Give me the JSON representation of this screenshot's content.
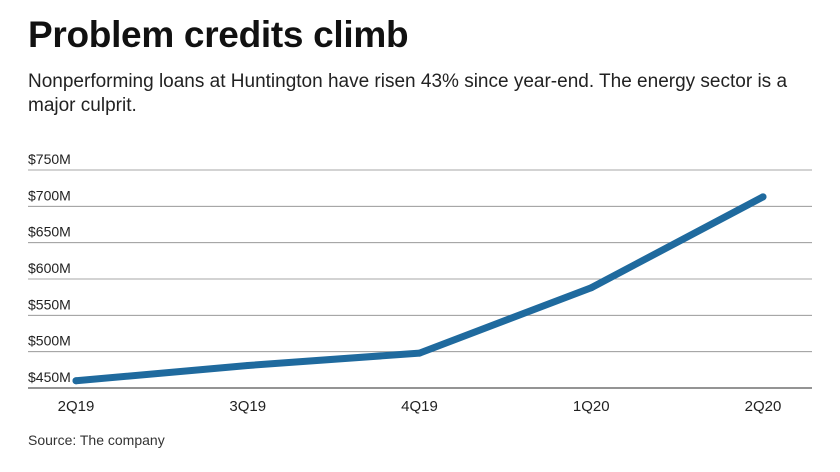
{
  "header": {
    "title": "Problem credits climb",
    "subtitle": "Nonperforming loans at Huntington have risen 43% since year-end. The energy sector is a major culprit."
  },
  "footer": {
    "source": "Source: The company"
  },
  "chart_data": {
    "type": "line",
    "categories": [
      "2Q19",
      "3Q19",
      "4Q19",
      "1Q20",
      "2Q20"
    ],
    "series": [
      {
        "values": [
          460,
          481,
          498,
          588,
          713
        ],
        "color": "#1f6a9e"
      }
    ],
    "ylim": [
      450,
      750
    ],
    "yticks": [
      450,
      500,
      550,
      600,
      650,
      700,
      750
    ],
    "ytick_labels": [
      "$450M",
      "$500M",
      "$550M",
      "$600M",
      "$650M",
      "$700M",
      "$750M"
    ],
    "grid": true,
    "title": "",
    "xlabel": "",
    "ylabel": ""
  }
}
